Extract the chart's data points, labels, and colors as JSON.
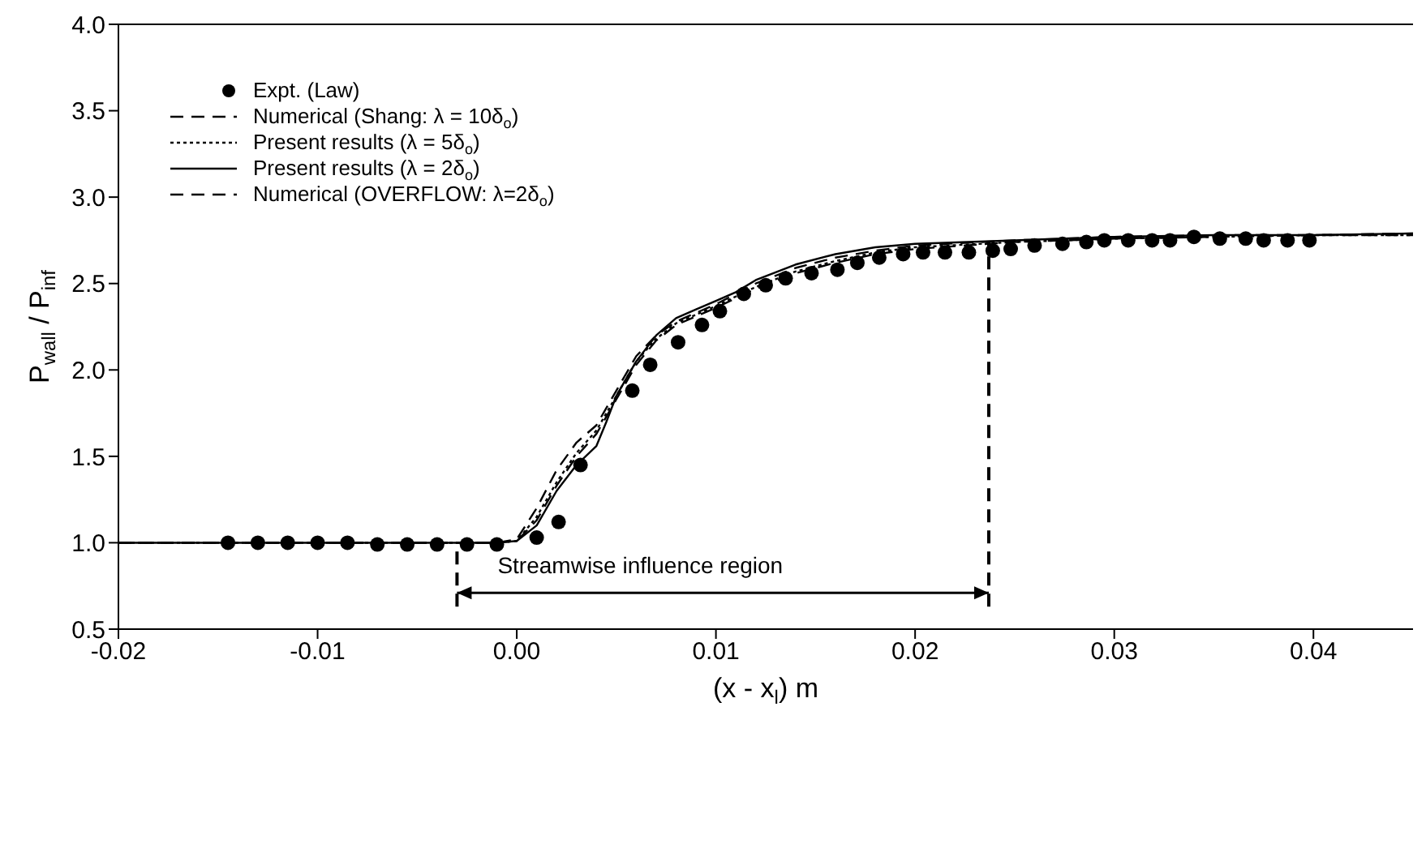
{
  "chart_data": {
    "type": "line",
    "xlabel": "(x - x$_{l}$) m",
    "ylabel": "P$_{wall}$ / P$_{inf}$",
    "xlim": [
      -0.02,
      0.045
    ],
    "xticks": [
      -0.02,
      -0.01,
      {
        "value": 0,
        "label": "0.00"
      },
      0.01,
      0.02,
      0.03,
      0.04
    ],
    "ylim": [
      0.5,
      4.0
    ],
    "yticks": [
      0.5,
      {
        "value": 1,
        "label": "1.0"
      },
      1.5,
      {
        "value": 2,
        "label": "2.0"
      },
      2.5,
      {
        "value": 3,
        "label": "3.0"
      },
      3.5,
      {
        "value": 4,
        "label": "4.0"
      }
    ],
    "legend": "top left",
    "series": [
      {
        "name": "Expt. (Law)",
        "type": "scatter",
        "marker": "circle",
        "color": "#000000",
        "x": [
          -0.0145,
          -0.013,
          -0.0115,
          -0.01,
          -0.0085,
          -0.007,
          -0.0055,
          -0.004,
          -0.0025,
          -0.001,
          0.001,
          0.0021,
          0.0032,
          0.0058,
          0.0067,
          0.0081,
          0.0093,
          0.0102,
          0.0114,
          0.0125,
          0.0135,
          0.0148,
          0.0161,
          0.0171,
          0.0182,
          0.0194,
          0.0204,
          0.0215,
          0.0227,
          0.0239,
          0.0248,
          0.026,
          0.0274,
          0.0286,
          0.0295,
          0.0307,
          0.0319,
          0.0328,
          0.034,
          0.0353,
          0.0366,
          0.0375,
          0.0387,
          0.0398
        ],
        "values": [
          1.0,
          1.0,
          1.0,
          1.0,
          1.0,
          0.99,
          0.99,
          0.99,
          0.99,
          0.99,
          1.03,
          1.12,
          1.45,
          1.88,
          2.03,
          2.16,
          2.26,
          2.34,
          2.44,
          2.49,
          2.53,
          2.56,
          2.58,
          2.62,
          2.65,
          2.67,
          2.68,
          2.68,
          2.68,
          2.69,
          2.7,
          2.72,
          2.73,
          2.74,
          2.75,
          2.75,
          2.75,
          2.75,
          2.77,
          2.76,
          2.76,
          2.75,
          2.75,
          2.75
        ]
      },
      {
        "name": "Numerical (Shang: λ = 10δ$_{o}$)",
        "line_style": "dashed",
        "color": "#000000",
        "x": [
          -0.02,
          -0.001,
          0,
          0.001,
          0.002,
          0.003,
          0.004,
          0.005,
          0.006,
          0.007,
          0.008,
          0.009,
          0.01,
          0.012,
          0.014,
          0.016,
          0.018,
          0.02,
          0.025,
          0.03,
          0.035,
          0.04,
          0.045
        ],
        "values": [
          1.0,
          1.0,
          1.02,
          1.2,
          1.42,
          1.58,
          1.68,
          1.88,
          2.08,
          2.2,
          2.28,
          2.33,
          2.38,
          2.5,
          2.59,
          2.65,
          2.69,
          2.72,
          2.75,
          2.77,
          2.78,
          2.78,
          2.79
        ]
      },
      {
        "name": "Present results (λ = 5δ$_{o}$)",
        "line_style": "dotted",
        "color": "#000000",
        "x": [
          -0.02,
          -0.001,
          0,
          0.001,
          0.002,
          0.003,
          0.004,
          0.005,
          0.006,
          0.007,
          0.008,
          0.009,
          0.01,
          0.012,
          0.014,
          0.016,
          0.018,
          0.02,
          0.025,
          0.03,
          0.035,
          0.04,
          0.045
        ],
        "values": [
          1.0,
          1.0,
          1.01,
          1.15,
          1.35,
          1.52,
          1.65,
          1.85,
          2.05,
          2.18,
          2.27,
          2.32,
          2.37,
          2.48,
          2.57,
          2.63,
          2.68,
          2.71,
          2.74,
          2.76,
          2.77,
          2.78,
          2.78
        ]
      },
      {
        "name": "Present results (λ = 2δ$_{o}$)",
        "line_style": "solid",
        "color": "#000000",
        "x": [
          -0.02,
          -0.001,
          0,
          0.001,
          0.002,
          0.003,
          0.004,
          0.0045,
          0.005,
          0.006,
          0.007,
          0.008,
          0.009,
          0.01,
          0.011,
          0.012,
          0.014,
          0.016,
          0.018,
          0.02,
          0.025,
          0.03,
          0.035,
          0.04,
          0.045
        ],
        "values": [
          1.0,
          1.0,
          1.01,
          1.1,
          1.3,
          1.45,
          1.56,
          1.7,
          1.85,
          2.05,
          2.2,
          2.3,
          2.35,
          2.4,
          2.45,
          2.52,
          2.61,
          2.67,
          2.71,
          2.73,
          2.75,
          2.77,
          2.78,
          2.78,
          2.79
        ]
      },
      {
        "name": "Numerical (OVERFLOW: λ=2δ$_{o}$)",
        "line_style": "dashed",
        "color": "#000000",
        "x": [
          -0.02,
          -0.001,
          0,
          0.001,
          0.002,
          0.003,
          0.004,
          0.005,
          0.006,
          0.007,
          0.008,
          0.009,
          0.01,
          0.012,
          0.014,
          0.016,
          0.018,
          0.02,
          0.025,
          0.03,
          0.035,
          0.04,
          0.045
        ],
        "values": [
          1.0,
          1.0,
          1.01,
          1.13,
          1.33,
          1.5,
          1.63,
          1.83,
          2.03,
          2.17,
          2.26,
          2.31,
          2.36,
          2.47,
          2.56,
          2.62,
          2.67,
          2.7,
          2.74,
          2.76,
          2.77,
          2.78,
          2.78
        ]
      }
    ],
    "ref_lines": [
      {
        "axis": "x",
        "value": -0.003,
        "line_style": "dashed",
        "color": "#000000"
      },
      {
        "axis": "x",
        "value": 0.0237,
        "line_style": "dashed",
        "color": "#000000"
      }
    ],
    "annotations": [
      "Streamwise influence region"
    ]
  }
}
